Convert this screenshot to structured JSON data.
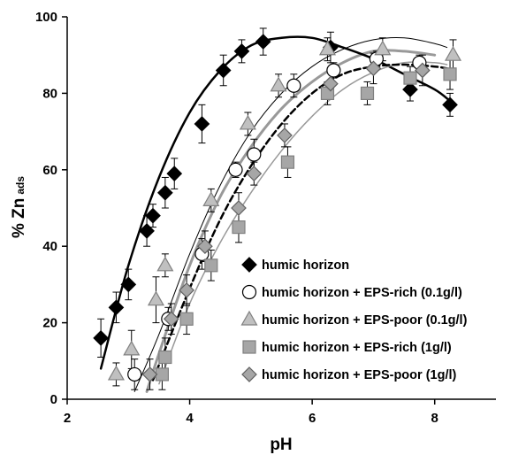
{
  "chart_data": {
    "type": "scatter",
    "title": "",
    "xlabel": "pH",
    "ylabel_main": "% Zn",
    "ylabel_sub": "ads",
    "xlim": [
      2,
      9
    ],
    "ylim": [
      0,
      100
    ],
    "xticks": [
      2,
      4,
      6,
      8
    ],
    "yticks": [
      0,
      20,
      40,
      60,
      80,
      100
    ],
    "grid": false,
    "legend_position": "bottom-right",
    "series": [
      {
        "name": "humic horizon",
        "marker": "diamond",
        "fill": "#000000",
        "stroke": "#000000",
        "points": [
          {
            "x": 2.55,
            "y": 16,
            "err": 5
          },
          {
            "x": 2.8,
            "y": 24,
            "err": 4
          },
          {
            "x": 3.0,
            "y": 30,
            "err": 4
          },
          {
            "x": 3.3,
            "y": 44,
            "err": 4
          },
          {
            "x": 3.4,
            "y": 48,
            "err": 3
          },
          {
            "x": 3.6,
            "y": 54,
            "err": 4
          },
          {
            "x": 3.75,
            "y": 59,
            "err": 4
          },
          {
            "x": 4.2,
            "y": 72,
            "err": 5
          },
          {
            "x": 4.55,
            "y": 86,
            "err": 4
          },
          {
            "x": 4.85,
            "y": 91,
            "err": 3
          },
          {
            "x": 5.2,
            "y": 93.5,
            "err": 3.5
          },
          {
            "x": 6.3,
            "y": 92,
            "err": 4
          },
          {
            "x": 7.6,
            "y": 81,
            "err": 3
          },
          {
            "x": 8.25,
            "y": 77,
            "err": 3
          }
        ],
        "curve": {
          "color": "#000000",
          "width": 2.5,
          "dash": "",
          "x": [
            2.55,
            3,
            3.5,
            4,
            4.5,
            5,
            5.5,
            6,
            6.5,
            7,
            7.5,
            8,
            8.25
          ],
          "y": [
            8,
            35,
            58,
            75,
            86,
            92.5,
            94.5,
            94.5,
            92,
            89,
            85,
            81,
            78
          ]
        }
      },
      {
        "name": "humic horizon + EPS-rich (0.1g/l)",
        "marker": "circle",
        "fill": "#ffffff",
        "stroke": "#000000",
        "points": [
          {
            "x": 3.1,
            "y": 6.5,
            "err": 4
          },
          {
            "x": 3.65,
            "y": 21,
            "err": 3
          },
          {
            "x": 4.2,
            "y": 38,
            "err": 4
          },
          {
            "x": 4.75,
            "y": 60,
            "err": 2
          },
          {
            "x": 5.05,
            "y": 64,
            "err": 4
          },
          {
            "x": 5.7,
            "y": 82,
            "err": 3
          },
          {
            "x": 6.35,
            "y": 86,
            "err": 2
          },
          {
            "x": 7.05,
            "y": 89,
            "err": 2
          },
          {
            "x": 7.75,
            "y": 88,
            "err": 2
          }
        ],
        "curve": {
          "color": "#000000",
          "width": 1,
          "dash": "",
          "x": [
            3.1,
            3.5,
            4,
            4.5,
            5,
            5.5,
            6,
            6.5,
            7,
            7.5,
            8,
            8.2
          ],
          "y": [
            2,
            17,
            38,
            56,
            70,
            80,
            87,
            91.5,
            94,
            94.5,
            93,
            92
          ]
        }
      },
      {
        "name": "humic horizon + EPS-poor (0.1g/l)",
        "marker": "triangle",
        "fill": "#c0c0c0",
        "stroke": "#808080",
        "points": [
          {
            "x": 2.8,
            "y": 6.5,
            "err": 3
          },
          {
            "x": 3.05,
            "y": 13,
            "err": 5
          },
          {
            "x": 3.45,
            "y": 26,
            "err": 6
          },
          {
            "x": 3.6,
            "y": 35,
            "err": 3
          },
          {
            "x": 4.35,
            "y": 52,
            "err": 3
          },
          {
            "x": 4.95,
            "y": 72,
            "err": 3
          },
          {
            "x": 5.45,
            "y": 82,
            "err": 3
          },
          {
            "x": 6.25,
            "y": 91.5,
            "err": 3
          },
          {
            "x": 7.15,
            "y": 91.5,
            "err": 3
          },
          {
            "x": 8.3,
            "y": 90,
            "err": 4
          }
        ],
        "curve": null
      },
      {
        "name": "humic horizon + EPS-rich (1g/l)",
        "marker": "square",
        "fill": "#a6a6a6",
        "stroke": "#808080",
        "points": [
          {
            "x": 3.55,
            "y": 6.5,
            "err": 4
          },
          {
            "x": 3.6,
            "y": 11,
            "err": 5
          },
          {
            "x": 3.95,
            "y": 21,
            "err": 4
          },
          {
            "x": 4.35,
            "y": 35,
            "err": 4
          },
          {
            "x": 4.8,
            "y": 45,
            "err": 4
          },
          {
            "x": 5.6,
            "y": 62,
            "err": 4
          },
          {
            "x": 6.25,
            "y": 80,
            "err": 3
          },
          {
            "x": 6.9,
            "y": 80,
            "err": 3
          },
          {
            "x": 7.6,
            "y": 84,
            "err": 3
          },
          {
            "x": 8.25,
            "y": 85,
            "err": 4
          }
        ],
        "curve": {
          "color": "#999999",
          "width": 1.5,
          "dash": "",
          "x": [
            3.5,
            4,
            4.5,
            5,
            5.5,
            6,
            6.5,
            7,
            7.5,
            8,
            8.2
          ],
          "y": [
            4,
            25,
            41,
            54,
            65,
            74,
            81,
            85.5,
            88,
            88,
            87.5
          ]
        }
      },
      {
        "name": "humic horizon + EPS-poor (1g/l)",
        "marker": "diamond",
        "fill": "#a6a6a6",
        "stroke": "#606060",
        "points": [
          {
            "x": 3.35,
            "y": 6.5,
            "err": 4
          },
          {
            "x": 3.7,
            "y": 21,
            "err": 4
          },
          {
            "x": 3.95,
            "y": 28.5,
            "err": 4
          },
          {
            "x": 4.25,
            "y": 40,
            "err": 4
          },
          {
            "x": 4.8,
            "y": 50,
            "err": 4
          },
          {
            "x": 5.05,
            "y": 59,
            "err": 3
          },
          {
            "x": 5.55,
            "y": 69,
            "err": 3
          },
          {
            "x": 6.3,
            "y": 82.5,
            "err": 4
          },
          {
            "x": 7.0,
            "y": 86.5,
            "err": 4
          },
          {
            "x": 7.8,
            "y": 86,
            "err": 4
          }
        ],
        "curve": {
          "color": "#000000",
          "width": 2.5,
          "dash": "7,4",
          "x": [
            3.4,
            4,
            4.5,
            5,
            5.5,
            6,
            6.5,
            7,
            7.5,
            8,
            8.2
          ],
          "y": [
            5,
            29,
            47,
            61,
            72,
            80,
            85,
            87,
            87.5,
            87,
            86.5
          ]
        }
      }
    ],
    "extra_curves": [
      {
        "color": "#999999",
        "width": 3,
        "dash": "",
        "x": [
          3.3,
          3.5,
          4,
          4.5,
          5,
          5.5,
          6,
          6.5,
          7,
          7.5,
          8
        ],
        "y": [
          2,
          12,
          35,
          53,
          66,
          76,
          83,
          88,
          91,
          91,
          90
        ]
      }
    ]
  }
}
